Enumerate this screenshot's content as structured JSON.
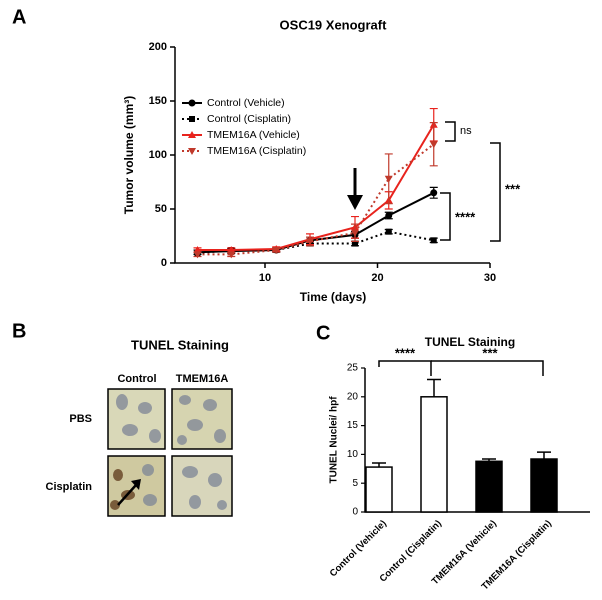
{
  "panels": [
    "A",
    "B",
    "C"
  ],
  "panel_b": {
    "title": "TUNEL Staining",
    "columns": [
      "Control",
      "TMEM16A"
    ],
    "rows": [
      "PBS",
      "Cisplatin"
    ]
  },
  "chart_data": [
    {
      "type": "line",
      "title": "OSC19 Xenograft",
      "x_label": "Time (days)",
      "y_label": "Tumor volume (mm³)",
      "x": [
        4,
        7,
        11,
        14,
        18,
        21,
        25
      ],
      "xlim": [
        2,
        30
      ],
      "xticks": [
        10,
        20,
        30
      ],
      "ylim": [
        0,
        200
      ],
      "yticks": [
        0,
        50,
        100,
        150,
        200
      ],
      "series": [
        {
          "name": "Control (Vehicle)",
          "color": "#000000",
          "dash": false,
          "marker": "circle",
          "values": [
            10,
            11,
            12,
            21,
            26,
            44,
            65
          ],
          "errors": [
            2,
            2,
            2,
            3,
            3,
            3,
            5
          ]
        },
        {
          "name": "Control (Cisplatin)",
          "color": "#000000",
          "dash": true,
          "marker": "square",
          "values": [
            9,
            12,
            12,
            18,
            18,
            29,
            21
          ],
          "errors": [
            1,
            1,
            1,
            2,
            2,
            2,
            2
          ]
        },
        {
          "name": "TMEM16A (Vehicle)",
          "color": "#e8231d",
          "dash": false,
          "marker": "triangle-up",
          "values": [
            12,
            12,
            13,
            22,
            33,
            58,
            128
          ],
          "errors": [
            2,
            2,
            2,
            5,
            10,
            8,
            15
          ]
        },
        {
          "name": "TMEM16A (Cisplatin)",
          "color": "#c0392b",
          "dash": true,
          "marker": "triangle-down",
          "values": [
            8,
            8,
            12,
            20,
            28,
            78,
            110
          ],
          "errors": [
            2,
            2,
            2,
            4,
            8,
            23,
            20
          ]
        }
      ],
      "annotations": [
        "ns",
        "****",
        "***"
      ]
    },
    {
      "type": "bar",
      "title": "TUNEL Staining",
      "y_label": "TUNEL Nuclei/ hpf",
      "categories": [
        "Control (Vehicle)",
        "Control (Cisplatin)",
        "TMEM16A (Vehicle)",
        "TMEM16A (Cisplatin)"
      ],
      "values": [
        7.8,
        20,
        8.8,
        9.2
      ],
      "errors": [
        0.7,
        3,
        0.4,
        1.2
      ],
      "colors": [
        "#ffffff",
        "#ffffff",
        "#000000",
        "#000000"
      ],
      "ylim": [
        0,
        25
      ],
      "yticks": [
        0,
        5,
        10,
        15,
        20,
        25
      ],
      "annotations": [
        "****",
        "***"
      ]
    }
  ]
}
